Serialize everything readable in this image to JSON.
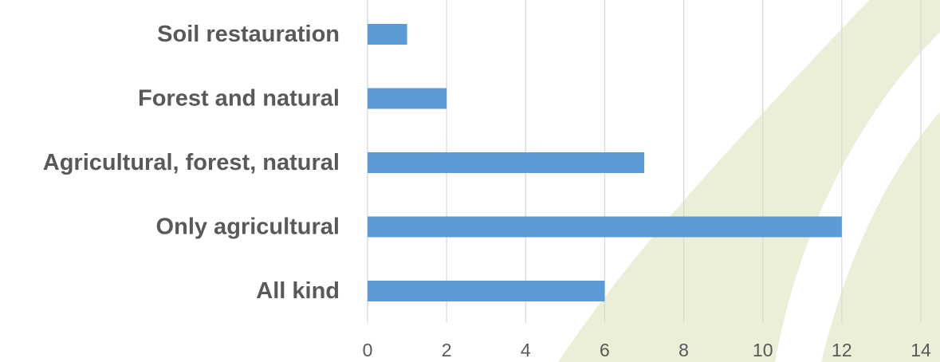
{
  "chart_data": {
    "type": "bar",
    "orientation": "horizontal",
    "categories": [
      "Soil restauration",
      "Forest and natural",
      "Agricultural, forest, natural",
      "Only agricultural",
      "All kind"
    ],
    "values": [
      1,
      2,
      7,
      12,
      6
    ],
    "xlim": [
      0,
      14
    ],
    "xticks": [
      0,
      2,
      4,
      6,
      8,
      10,
      12,
      14
    ],
    "grid": "vertical",
    "legend": "none",
    "title": "",
    "xlabel": "",
    "ylabel": ""
  },
  "colors": {
    "bar": "#5b9bd5",
    "gridline": "#d9d9d9",
    "text": "#595959",
    "background_decoration": "#ebefd8"
  },
  "background": {
    "decoration": "leaf-swoosh-watermark"
  }
}
